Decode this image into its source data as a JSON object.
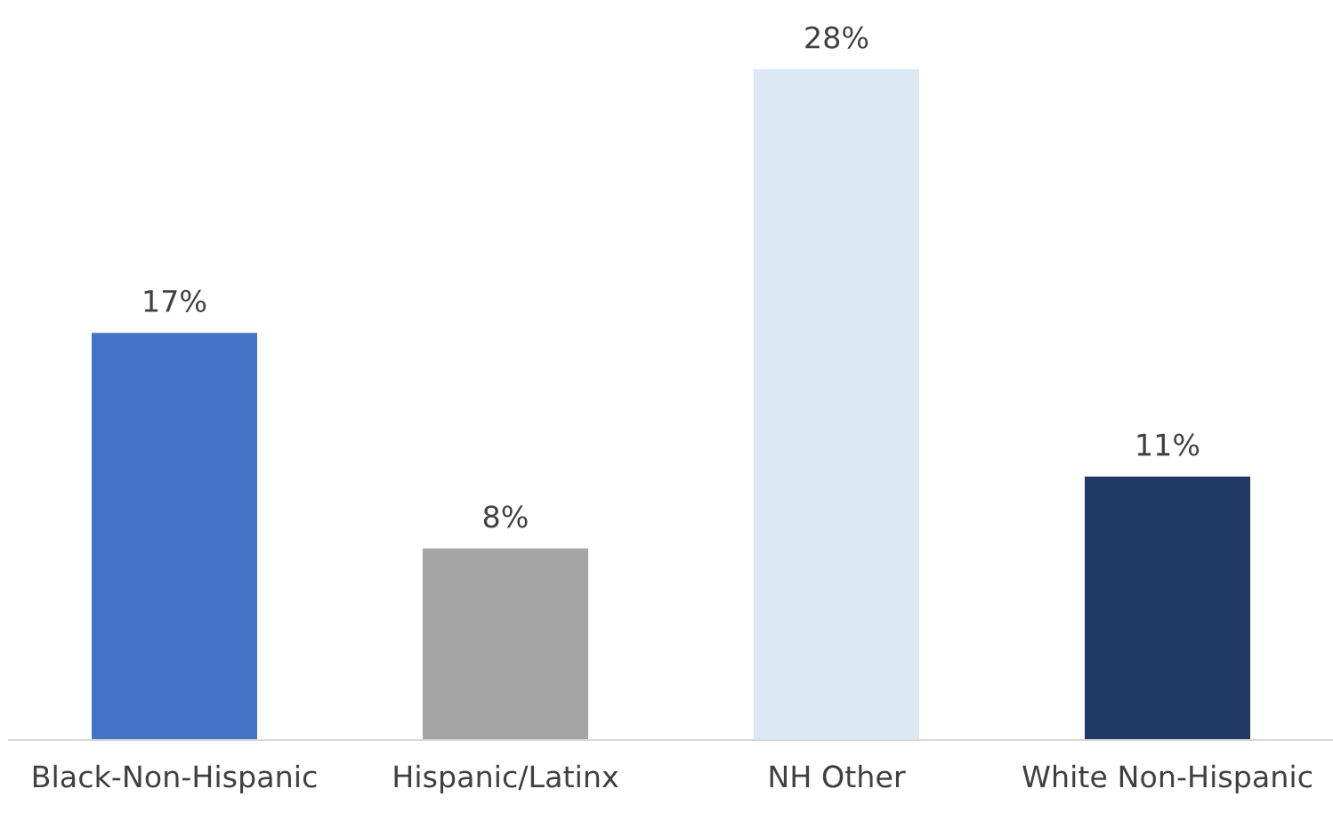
{
  "chart_data": {
    "type": "bar",
    "categories": [
      "Black-Non-Hispanic",
      "Hispanic/Latinx",
      "NH Other",
      "White Non-Hispanic"
    ],
    "values": [
      17,
      8,
      28,
      11
    ],
    "colors": [
      "#4472c4",
      "#a5a5a5",
      "#dde8f5",
      "#203864"
    ],
    "value_labels": [
      "17%",
      "8%",
      "28%",
      "11%"
    ],
    "grid": false,
    "legend": false
  }
}
